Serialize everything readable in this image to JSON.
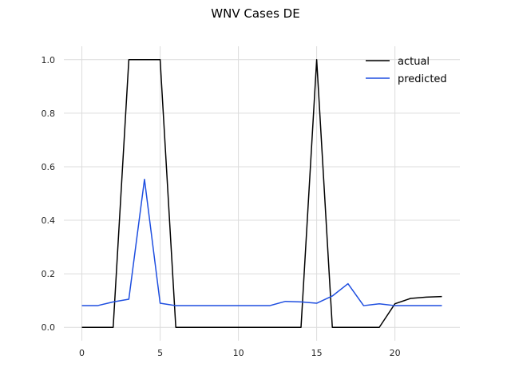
{
  "chart_data": {
    "type": "line",
    "title": "WNV Cases DE",
    "xlabel": "",
    "ylabel": "",
    "xlim": [
      -1.15,
      24.15
    ],
    "ylim": [
      -0.05,
      1.05
    ],
    "xticks": [
      0,
      5,
      10,
      15,
      20
    ],
    "yticks": [
      0.0,
      0.2,
      0.4,
      0.6,
      0.8,
      1.0
    ],
    "xtick_labels": [
      "0",
      "5",
      "10",
      "15",
      "20"
    ],
    "ytick_labels": [
      "0.0",
      "0.2",
      "0.4",
      "0.6",
      "0.8",
      "1.0"
    ],
    "grid": true,
    "legend_position": "top-right",
    "series": [
      {
        "name": "actual",
        "color": "#000000",
        "x": [
          0,
          1,
          2,
          3,
          4,
          5,
          6,
          7,
          8,
          9,
          10,
          11,
          12,
          13,
          14,
          15,
          16,
          17,
          18,
          19,
          20,
          21,
          22,
          23
        ],
        "y": [
          0,
          0,
          0,
          1,
          1,
          1,
          0,
          0,
          0,
          0,
          0,
          0,
          0,
          0,
          0,
          1,
          0,
          0,
          0,
          0,
          0.088,
          0.108,
          0.113,
          0.115
        ]
      },
      {
        "name": "predicted",
        "color": "#1f4fe0",
        "x": [
          0,
          1,
          2,
          3,
          4,
          5,
          6,
          7,
          8,
          9,
          10,
          11,
          12,
          13,
          14,
          15,
          16,
          17,
          18,
          19,
          20,
          21,
          22,
          23
        ],
        "y": [
          0.081,
          0.081,
          0.095,
          0.105,
          0.553,
          0.09,
          0.081,
          0.081,
          0.081,
          0.081,
          0.081,
          0.081,
          0.081,
          0.097,
          0.095,
          0.09,
          0.117,
          0.163,
          0.081,
          0.088,
          0.081,
          0.081,
          0.081,
          0.081
        ]
      }
    ]
  }
}
